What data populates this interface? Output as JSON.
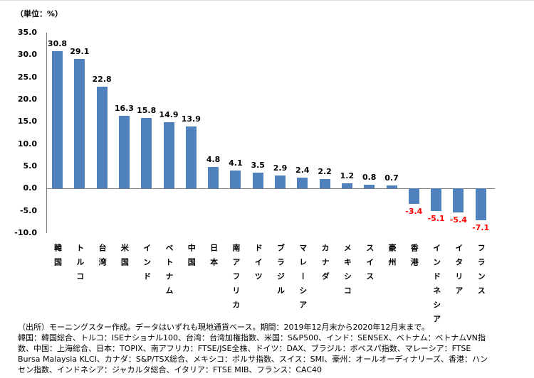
{
  "chart_data": {
    "type": "bar",
    "unit_label": "（単位：%）",
    "ylim": [
      -10,
      35
    ],
    "yticks": [
      "35.0",
      "30.0",
      "25.0",
      "20.0",
      "15.0",
      "10.0",
      "5.0",
      "0.0",
      "-5.0",
      "-10.0"
    ],
    "ytick_values": [
      35,
      30,
      25,
      20,
      15,
      10,
      5,
      0,
      -5,
      -10
    ],
    "categories": [
      "韓国",
      "トルコ",
      "台湾",
      "米国",
      "インド",
      "ベトナム",
      "中国",
      "日本",
      "南アフリカ",
      "ドイツ",
      "ブラジル",
      "マレーシア",
      "カナダ",
      "メキシコ",
      "スイス",
      "豪州",
      "香港",
      "インドネシア",
      "イタリア",
      "フランス"
    ],
    "values": [
      30.8,
      29.1,
      22.8,
      16.3,
      15.8,
      14.9,
      13.9,
      4.8,
      4.1,
      3.5,
      2.9,
      2.4,
      2.2,
      1.2,
      0.8,
      0.7,
      -3.4,
      -5.1,
      -5.4,
      -7.1
    ],
    "labels": [
      "30.8",
      "29.1",
      "22.8",
      "16.3",
      "15.8",
      "14.9",
      "13.9",
      "4.8",
      "4.1",
      "3.5",
      "2.9",
      "2.4",
      "2.2",
      "1.2",
      "0.8",
      "0.7",
      "-3.4",
      "-5.1",
      "-5.4",
      "-7.1"
    ],
    "colors": {
      "bar": "#4f81bd",
      "positive_label": "#000000",
      "negative_label": "#ff0000",
      "axis": "#808080"
    }
  },
  "notes": [
    "（出所）モーニングスター作成。データはいずれも現地通貨ベース。期間：2019年12月末から2020年12月末まで。",
    "韓国：韓国総合、トルコ：ISEナショナル100、台湾：台湾加権指数、米国：S&P500、インド：SENSEX、ベトナム：ベトナムVN指",
    "数、中国：上海総合、日本：TOPIX、南アフリカ：FTSE/JSE全株、ドイツ：DAX、ブラジル：ボベスパ指数、マレーシア：FTSE",
    "Bursa Malaysia KLCI、カナダ：S&P/TSX総合、メキシコ：ボルサ指数、スイス：SMI、豪州：オールオーディナリーズ、香港：ハン",
    "セン指数、インドネシア：ジャカルタ総合、イタリア：FTSE MIB、フランス：CAC40"
  ]
}
